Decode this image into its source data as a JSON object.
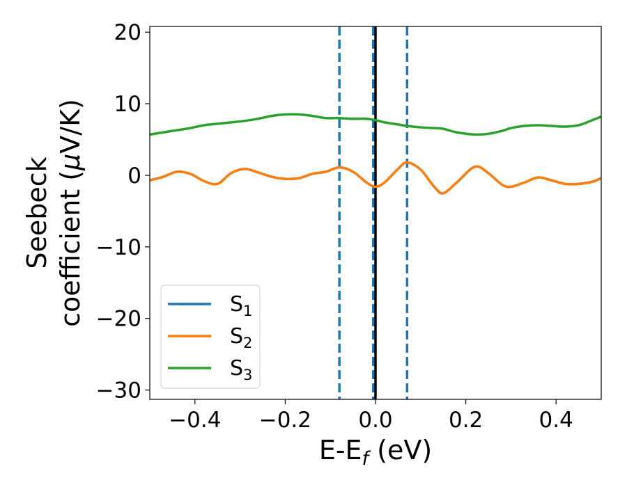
{
  "chart_data": {
    "type": "line",
    "title": "",
    "xlabel": {
      "main": "E-E",
      "sub": "f",
      "suffix": " (eV)"
    },
    "ylabel": {
      "line1": "Seebeck",
      "line2_prefix": "coefficient  (",
      "mu": "μ",
      "line2_suffix": "V/K)"
    },
    "xlim": [
      -0.5,
      0.5
    ],
    "ylim": [
      -31.3,
      20.8
    ],
    "xticks": [
      -0.4,
      -0.2,
      0.0,
      0.2,
      0.4
    ],
    "xtick_labels": [
      "−0.4",
      "−0.2",
      "0.0",
      "0.2",
      "0.4"
    ],
    "yticks": [
      20,
      10,
      0,
      -10,
      -20,
      -30
    ],
    "ytick_labels": [
      "20",
      "10",
      "0",
      "−10",
      "−20",
      "−30"
    ],
    "grid": false,
    "legend_position": "lower-left",
    "x": [
      -0.5,
      -0.47,
      -0.44,
      -0.41,
      -0.38,
      -0.35,
      -0.32,
      -0.29,
      -0.26,
      -0.23,
      -0.2,
      -0.17,
      -0.14,
      -0.11,
      -0.08,
      -0.05,
      -0.02,
      0.0,
      0.02,
      0.05,
      0.07,
      0.1,
      0.13,
      0.15,
      0.18,
      0.22,
      0.25,
      0.28,
      0.3,
      0.33,
      0.36,
      0.39,
      0.42,
      0.45,
      0.48,
      0.5
    ],
    "series": [
      {
        "name": "S",
        "sub": "1",
        "color": "#1f77b4",
        "values": [
          -0.7,
          -0.2,
          0.5,
          0.2,
          -0.8,
          -1.2,
          0.3,
          0.9,
          0.4,
          -0.2,
          -0.5,
          -0.4,
          0.2,
          0.5,
          1.1,
          0.5,
          -1.0,
          -1.6,
          -1.0,
          0.9,
          1.8,
          0.8,
          -1.6,
          -2.5,
          -1.0,
          1.2,
          0.3,
          -1.3,
          -1.6,
          -1.0,
          -0.3,
          -0.7,
          -1.2,
          -1.2,
          -0.9,
          -0.4
        ]
      },
      {
        "name": "S",
        "sub": "2",
        "color": "#ff7f0e",
        "values": [
          -0.7,
          -0.2,
          0.5,
          0.2,
          -0.8,
          -1.2,
          0.3,
          0.9,
          0.4,
          -0.2,
          -0.5,
          -0.4,
          0.2,
          0.5,
          1.1,
          0.5,
          -1.0,
          -1.6,
          -1.0,
          0.9,
          1.8,
          0.8,
          -1.6,
          -2.5,
          -1.0,
          1.2,
          0.3,
          -1.3,
          -1.6,
          -1.0,
          -0.3,
          -0.7,
          -1.2,
          -1.2,
          -0.9,
          -0.4
        ]
      },
      {
        "name": "S",
        "sub": "3",
        "color": "#2ca02c",
        "values": [
          5.7,
          6.0,
          6.3,
          6.6,
          7.0,
          7.2,
          7.4,
          7.6,
          7.9,
          8.3,
          8.5,
          8.5,
          8.3,
          8.0,
          8.0,
          7.9,
          7.9,
          7.7,
          7.4,
          7.1,
          6.9,
          6.7,
          6.6,
          6.5,
          6.0,
          5.7,
          5.8,
          6.2,
          6.6,
          6.9,
          7.0,
          6.9,
          6.8,
          7.0,
          7.7,
          8.2
        ]
      }
    ],
    "vlines": [
      {
        "x": -0.08,
        "style": "dashed",
        "color": "#1f77b4"
      },
      {
        "x": -0.005,
        "style": "dashed",
        "color": "#1f77b4"
      },
      {
        "x": 0.0,
        "style": "solid",
        "color": "#000000"
      },
      {
        "x": 0.07,
        "style": "dashed",
        "color": "#1f77b4"
      }
    ]
  }
}
